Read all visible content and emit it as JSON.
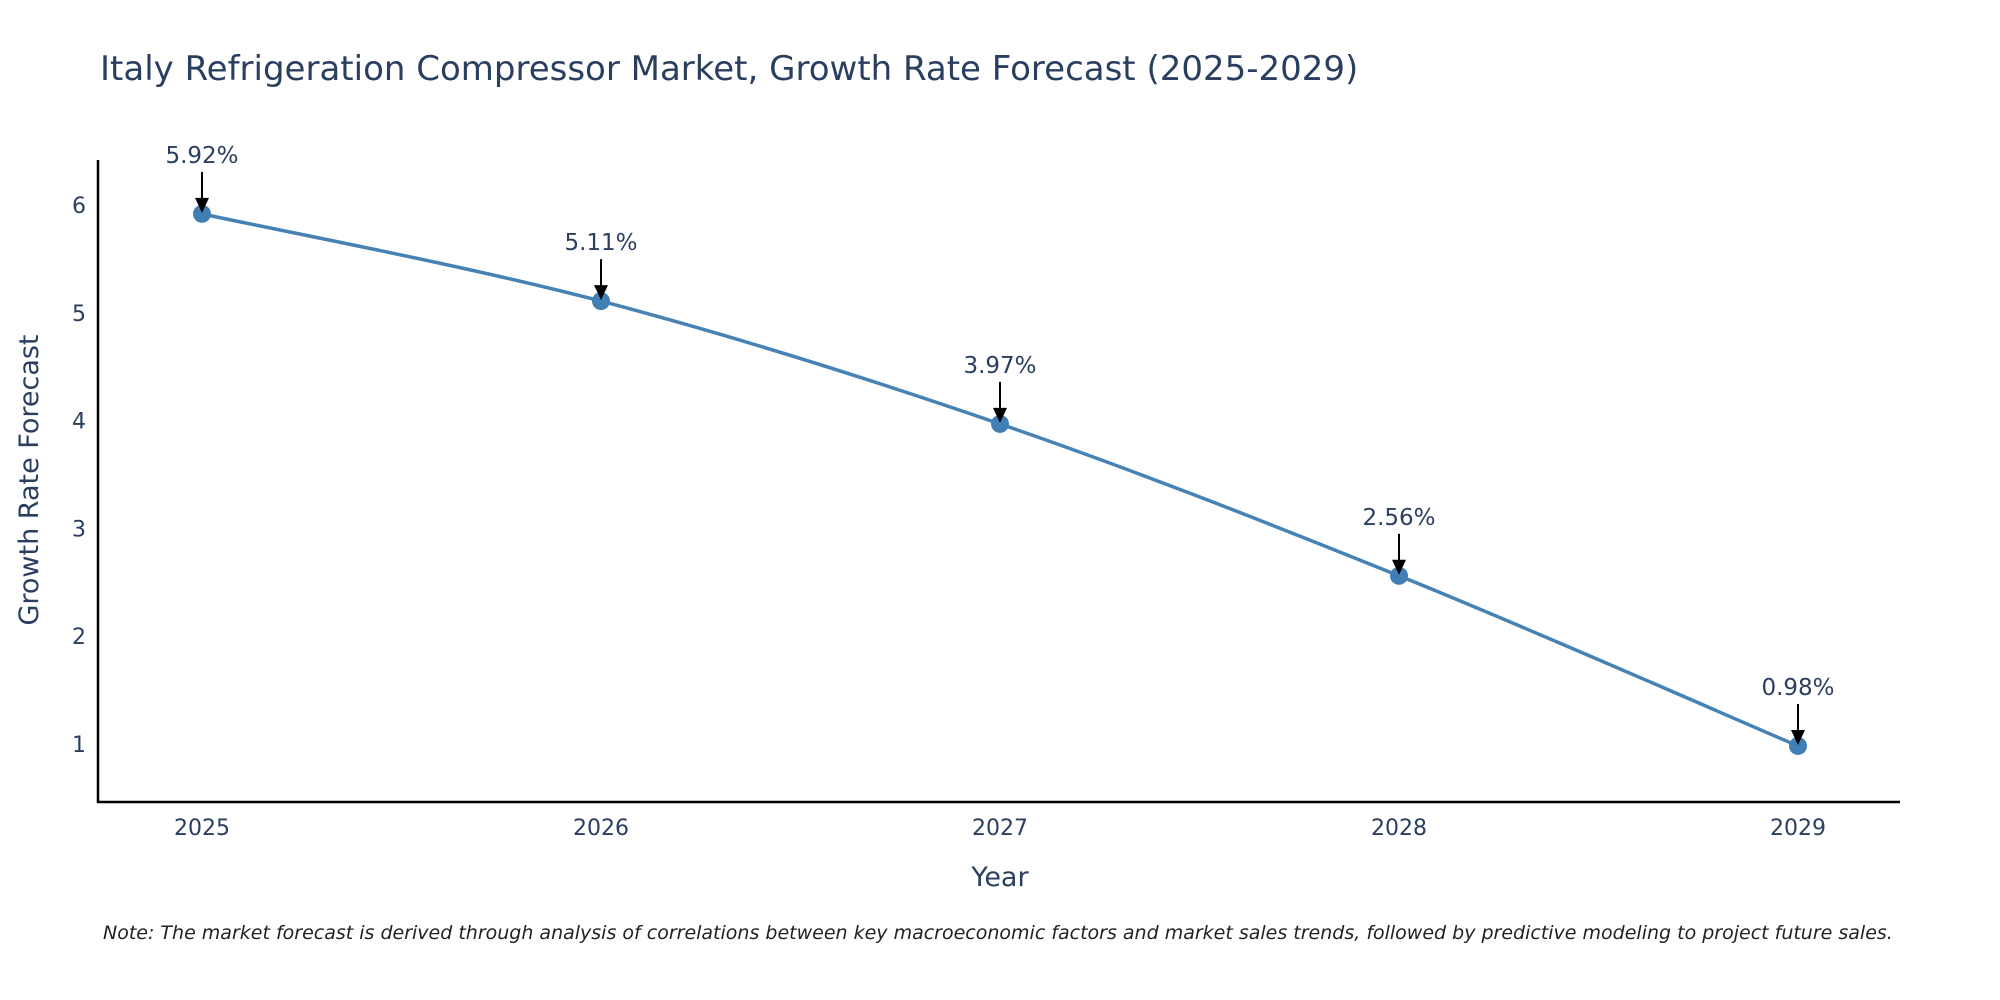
{
  "chart_data": {
    "type": "line",
    "title": "Italy Refrigeration Compressor Market, Growth Rate Forecast (2025-2029)",
    "xlabel": "Year",
    "ylabel": "Growth Rate Forecast",
    "categories": [
      "2025",
      "2026",
      "2027",
      "2028",
      "2029"
    ],
    "series": [
      {
        "name": "Growth Rate Forecast",
        "values": [
          5.92,
          5.11,
          3.97,
          2.56,
          0.98
        ],
        "labels": [
          "5.92%",
          "5.11%",
          "3.97%",
          "2.56%",
          "0.98%"
        ]
      }
    ],
    "yticks": [
      1,
      2,
      3,
      4,
      5,
      6
    ],
    "ylim": [
      0.46,
      6.42
    ],
    "grid": false,
    "legend": "none",
    "note": "Note: The market forecast is derived through analysis of correlations between key macroeconomic factors and market sales trends, followed by predictive modeling to project future sales."
  },
  "colors": {
    "line": "#4682b4",
    "marker": "#3f7fb6",
    "axis": "#000000",
    "text": "#2a3f5f",
    "arrow": "#000000"
  }
}
